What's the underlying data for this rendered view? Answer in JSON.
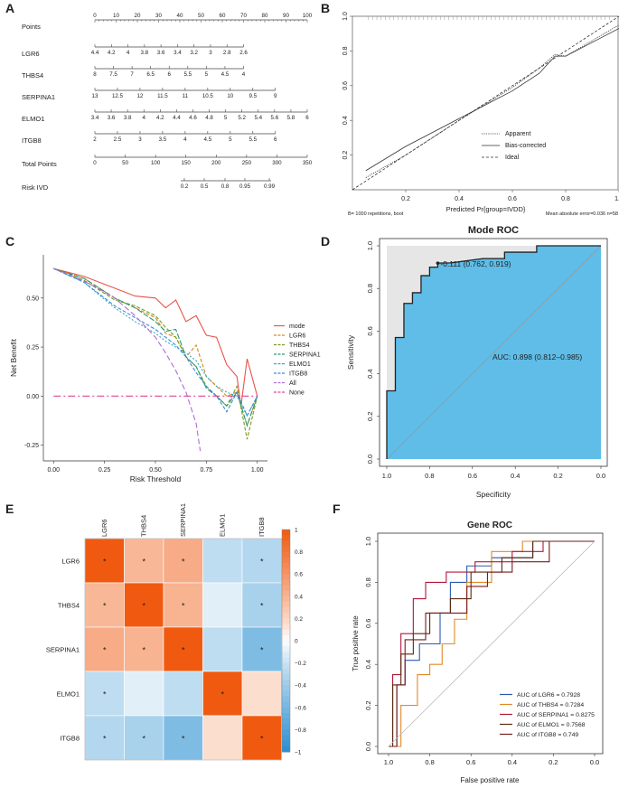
{
  "panels": {
    "A": "A",
    "B": "B",
    "C": "C",
    "D": "D",
    "E": "E",
    "F": "F"
  },
  "chart_data": [
    {
      "id": "nomogram",
      "type": "nomogram",
      "title": "",
      "rows": [
        {
          "label": "Points",
          "ticks": [
            "0",
            "10",
            "20",
            "30",
            "40",
            "50",
            "60",
            "70",
            "80",
            "90",
            "100"
          ],
          "range": [
            0,
            100
          ]
        },
        {
          "label": "LGR6",
          "ticks": [
            "4.4",
            "4.2",
            "4",
            "3.8",
            "3.6",
            "3.4",
            "3.2",
            "3",
            "2.8",
            "2.6"
          ],
          "range": [
            0,
            70
          ]
        },
        {
          "label": "THBS4",
          "ticks": [
            "8",
            "7.5",
            "7",
            "6.5",
            "6",
            "5.5",
            "5",
            "4.5",
            "4"
          ],
          "range": [
            0,
            70
          ]
        },
        {
          "label": "SERPINA1",
          "ticks": [
            "13",
            "12.5",
            "12",
            "11.5",
            "11",
            "10.5",
            "10",
            "9.5",
            "9"
          ],
          "range": [
            0,
            85
          ]
        },
        {
          "label": "ELMO1",
          "ticks": [
            "3.4",
            "3.6",
            "3.8",
            "4",
            "4.2",
            "4.4",
            "4.6",
            "4.8",
            "5",
            "5.2",
            "5.4",
            "5.6",
            "5.8",
            "6"
          ],
          "range": [
            0,
            100
          ]
        },
        {
          "label": "ITGB8",
          "ticks": [
            "2",
            "2.5",
            "3",
            "3.5",
            "4",
            "4.5",
            "5",
            "5.5",
            "6"
          ],
          "range": [
            0,
            85
          ]
        },
        {
          "label": "Total Points",
          "ticks": [
            "0",
            "50",
            "100",
            "150",
            "200",
            "250",
            "300",
            "350"
          ],
          "range": [
            0,
            350
          ]
        },
        {
          "label": "Risk IVD",
          "ticks": [
            "0.2",
            "0.5",
            "0.8",
            "0.95",
            "0.99"
          ],
          "range": [
            0,
            0
          ]
        }
      ]
    },
    {
      "id": "calibration",
      "type": "line",
      "xlabel": "Predicted Pr{group=IVDD}",
      "ylabel": "",
      "xticks": [
        "0.2",
        "0.4",
        "0.6",
        "0.8",
        "1.0"
      ],
      "yticks": [
        "0.2",
        "0.4",
        "0.6",
        "0.8",
        "1.0"
      ],
      "xlim": [
        0.0,
        1.0
      ],
      "ylim": [
        0.0,
        1.0
      ],
      "legend": [
        "Apparent",
        "Bias-corrected",
        "Ideal"
      ],
      "legend_position": "bottom-right",
      "footnote_left": "B= 1000 repetitions, boot",
      "footnote_right": "Mean absolute error=0.036 n=58",
      "series": [
        {
          "name": "Apparent",
          "x": [
            0.05,
            0.2,
            0.4,
            0.6,
            0.7,
            0.76,
            0.8,
            0.9,
            1.0
          ],
          "y": [
            0.07,
            0.2,
            0.4,
            0.59,
            0.7,
            0.78,
            0.77,
            0.86,
            0.95
          ]
        },
        {
          "name": "Bias-corrected",
          "x": [
            0.05,
            0.2,
            0.4,
            0.6,
            0.7,
            0.76,
            0.8,
            0.9,
            1.0
          ],
          "y": [
            0.11,
            0.25,
            0.41,
            0.57,
            0.67,
            0.77,
            0.77,
            0.85,
            0.93
          ]
        },
        {
          "name": "Ideal",
          "x": [
            0.0,
            1.0
          ],
          "y": [
            0.0,
            1.0
          ]
        }
      ]
    },
    {
      "id": "dca",
      "type": "line",
      "xlabel": "Risk Threshold",
      "ylabel": "Net Benefit",
      "xticks": [
        "0.00",
        "0.25",
        "0.50",
        "0.75",
        "1.00"
      ],
      "yticks": [
        "-0.25",
        "0.00",
        "0.25",
        "0.50"
      ],
      "xlim": [
        -0.05,
        1.05
      ],
      "ylim": [
        -0.33,
        0.72
      ],
      "legend_position": "right",
      "series": [
        {
          "name": "mode",
          "color": "#e8534a",
          "dash": "",
          "x": [
            0,
            0.15,
            0.3,
            0.4,
            0.5,
            0.55,
            0.6,
            0.65,
            0.7,
            0.75,
            0.8,
            0.85,
            0.9,
            0.92,
            0.95,
            1.0
          ],
          "y": [
            0.65,
            0.61,
            0.55,
            0.51,
            0.5,
            0.45,
            0.49,
            0.38,
            0.41,
            0.31,
            0.3,
            0.16,
            0.1,
            -0.05,
            0.19,
            0.0
          ]
        },
        {
          "name": "LGR6",
          "color": "#d88a1c",
          "dash": "4,2",
          "x": [
            0,
            0.15,
            0.3,
            0.4,
            0.5,
            0.55,
            0.6,
            0.65,
            0.7,
            0.75,
            0.8,
            0.85,
            0.9,
            0.95,
            1.0
          ],
          "y": [
            0.65,
            0.6,
            0.5,
            0.45,
            0.4,
            0.32,
            0.3,
            0.2,
            0.26,
            0.1,
            0.05,
            0.0,
            0.02,
            -0.15,
            0.0
          ]
        },
        {
          "name": "THBS4",
          "color": "#7a9a1e",
          "dash": "4,2",
          "x": [
            0,
            0.15,
            0.3,
            0.4,
            0.5,
            0.55,
            0.6,
            0.65,
            0.7,
            0.75,
            0.8,
            0.85,
            0.9,
            0.95,
            1.0
          ],
          "y": [
            0.65,
            0.59,
            0.49,
            0.46,
            0.41,
            0.35,
            0.3,
            0.2,
            0.15,
            0.05,
            0.0,
            -0.05,
            0.05,
            -0.22,
            0.0
          ]
        },
        {
          "name": "SERPINA1",
          "color": "#2a9a6a",
          "dash": "6,2",
          "x": [
            0,
            0.15,
            0.3,
            0.4,
            0.5,
            0.55,
            0.6,
            0.65,
            0.7,
            0.75,
            0.8,
            0.85,
            0.9,
            0.95,
            1.0
          ],
          "y": [
            0.65,
            0.6,
            0.5,
            0.45,
            0.38,
            0.33,
            0.34,
            0.2,
            0.15,
            0.04,
            0.0,
            -0.05,
            0.02,
            -0.15,
            0.0
          ]
        },
        {
          "name": "ELMO1",
          "color": "#2aa8c8",
          "dash": "2,2",
          "x": [
            0,
            0.15,
            0.3,
            0.4,
            0.5,
            0.55,
            0.6,
            0.65,
            0.7,
            0.75,
            0.8,
            0.85,
            0.9,
            0.95,
            1.0
          ],
          "y": [
            0.65,
            0.58,
            0.45,
            0.38,
            0.32,
            0.28,
            0.25,
            0.22,
            0.18,
            0.1,
            0.05,
            0.02,
            0.0,
            -0.1,
            0.0
          ]
        },
        {
          "name": "ITGB8",
          "color": "#3a8ad8",
          "dash": "4,2",
          "x": [
            0,
            0.15,
            0.3,
            0.4,
            0.5,
            0.55,
            0.6,
            0.65,
            0.7,
            0.75,
            0.8,
            0.85,
            0.9,
            0.95,
            1.0
          ],
          "y": [
            0.65,
            0.58,
            0.46,
            0.4,
            0.34,
            0.3,
            0.26,
            0.2,
            0.12,
            0.05,
            0.0,
            -0.08,
            0.02,
            -0.1,
            0.0
          ]
        },
        {
          "name": "All",
          "color": "#b36ad8",
          "dash": "6,3",
          "x": [
            0,
            0.1,
            0.2,
            0.3,
            0.4,
            0.5,
            0.55,
            0.6,
            0.65,
            0.7,
            0.72
          ],
          "y": [
            0.65,
            0.61,
            0.56,
            0.5,
            0.41,
            0.3,
            0.22,
            0.13,
            0.02,
            -0.14,
            -0.28
          ]
        },
        {
          "name": "None",
          "color": "#e0449a",
          "dash": "8,3,2,3",
          "x": [
            0,
            1.0
          ],
          "y": [
            0,
            0
          ]
        }
      ]
    },
    {
      "id": "mode-roc",
      "type": "line",
      "title": "Mode ROC",
      "xlabel": "Specificity",
      "ylabel": "Sensitivity",
      "xticks": [
        "1.0",
        "0.8",
        "0.6",
        "0.4",
        "0.2",
        "0.0"
      ],
      "yticks": [
        "0.0",
        "0.2",
        "0.4",
        "0.6",
        "0.8",
        "1.0"
      ],
      "xlim": [
        1.0,
        0.0
      ],
      "ylim": [
        0.0,
        1.0
      ],
      "auc_text": "AUC: 0.898 (0.812–0.985)",
      "threshold_text": "-0.111 (0.762, 0.919)",
      "threshold_point": [
        0.762,
        0.919
      ],
      "series": [
        {
          "name": "ROC",
          "spec": [
            1.0,
            1.0,
            0.96,
            0.96,
            0.92,
            0.92,
            0.88,
            0.88,
            0.84,
            0.84,
            0.8,
            0.8,
            0.762,
            0.762,
            0.7,
            0.55,
            0.45,
            0.45,
            0.3,
            0.3,
            0.0
          ],
          "sens": [
            0.0,
            0.32,
            0.32,
            0.57,
            0.57,
            0.73,
            0.73,
            0.78,
            0.78,
            0.86,
            0.86,
            0.9,
            0.9,
            0.919,
            0.92,
            0.94,
            0.94,
            0.97,
            0.97,
            1.0,
            1.0
          ]
        }
      ]
    },
    {
      "id": "correlation",
      "type": "heatmap",
      "labels": [
        "LGR6",
        "THBS4",
        "SERPINA1",
        "ELMO1",
        "ITGB8"
      ],
      "matrix": [
        [
          1.0,
          0.38,
          0.45,
          -0.25,
          -0.3
        ],
        [
          0.38,
          1.0,
          0.4,
          -0.1,
          -0.35
        ],
        [
          0.45,
          0.4,
          1.0,
          -0.25,
          -0.55
        ],
        [
          -0.25,
          -0.1,
          -0.25,
          1.0,
          0.15
        ],
        [
          -0.3,
          -0.35,
          -0.55,
          0.15,
          1.0
        ]
      ],
      "significant": [
        [
          true,
          true,
          true,
          false,
          true
        ],
        [
          true,
          true,
          true,
          false,
          true
        ],
        [
          true,
          true,
          true,
          false,
          true
        ],
        [
          true,
          false,
          false,
          true,
          false
        ],
        [
          true,
          true,
          true,
          false,
          true
        ]
      ],
      "star": "*",
      "colorbar_ticks": [
        "1",
        "0.8",
        "0.6",
        "0.4",
        "0.2",
        "0",
        "−0.2",
        "−0.4",
        "−0.6",
        "−0.8",
        "−1"
      ]
    },
    {
      "id": "gene-roc",
      "type": "line",
      "title": "Gene ROC",
      "xlabel": "False positive rate",
      "ylabel": "True positive rate",
      "xticks": [
        "1.0",
        "0.8",
        "0.6",
        "0.4",
        "0.2",
        "0.0"
      ],
      "yticks": [
        "0.0",
        "0.2",
        "0.4",
        "0.6",
        "0.8",
        "1.0"
      ],
      "xlim": [
        1.0,
        0.0
      ],
      "ylim": [
        0.0,
        1.0
      ],
      "legend_position": "bottom-right",
      "series": [
        {
          "name": "LGR6",
          "label": "AUC of  LGR6  = 0.7928",
          "color": "#2a5ab0",
          "x": [
            1.0,
            0.96,
            0.96,
            0.92,
            0.92,
            0.85,
            0.85,
            0.75,
            0.75,
            0.7,
            0.7,
            0.62,
            0.62,
            0.5,
            0.5,
            0.3,
            0.3,
            0.0
          ],
          "y": [
            0.0,
            0.0,
            0.3,
            0.3,
            0.42,
            0.42,
            0.5,
            0.5,
            0.65,
            0.65,
            0.8,
            0.8,
            0.88,
            0.88,
            0.92,
            0.92,
            1.0,
            1.0
          ]
        },
        {
          "name": "THBS4",
          "label": "AUC of  THBS4  = 0.7284",
          "color": "#e08a2a",
          "x": [
            1.0,
            0.94,
            0.94,
            0.86,
            0.86,
            0.8,
            0.8,
            0.74,
            0.74,
            0.68,
            0.68,
            0.62,
            0.62,
            0.5,
            0.5,
            0.35,
            0.35,
            0.0
          ],
          "y": [
            0.0,
            0.0,
            0.2,
            0.2,
            0.35,
            0.35,
            0.4,
            0.4,
            0.5,
            0.5,
            0.62,
            0.62,
            0.8,
            0.8,
            0.95,
            0.95,
            1.0,
            1.0
          ]
        },
        {
          "name": "SERPINA1",
          "label": "AUC of  SERPINA1  = 0.8275",
          "color": "#b0183a",
          "x": [
            1.0,
            0.98,
            0.98,
            0.94,
            0.94,
            0.88,
            0.88,
            0.82,
            0.82,
            0.72,
            0.72,
            0.58,
            0.58,
            0.4,
            0.4,
            0.25,
            0.25,
            0.0
          ],
          "y": [
            0.0,
            0.0,
            0.35,
            0.35,
            0.55,
            0.55,
            0.72,
            0.72,
            0.8,
            0.8,
            0.85,
            0.85,
            0.9,
            0.9,
            0.95,
            0.95,
            1.0,
            1.0
          ]
        },
        {
          "name": "ELMO1",
          "label": "AUC of  ELMO1  = 0.7568",
          "color": "#5a2a10",
          "x": [
            1.0,
            0.98,
            0.98,
            0.94,
            0.94,
            0.88,
            0.88,
            0.8,
            0.8,
            0.7,
            0.7,
            0.6,
            0.6,
            0.45,
            0.45,
            0.3,
            0.3,
            0.0
          ],
          "y": [
            0.0,
            0.0,
            0.3,
            0.3,
            0.45,
            0.45,
            0.55,
            0.55,
            0.65,
            0.65,
            0.72,
            0.72,
            0.85,
            0.85,
            0.92,
            0.92,
            1.0,
            1.0
          ]
        },
        {
          "name": "ITGB8",
          "label": "AUC of  ITGB8  = 0.749",
          "color": "#7a1a1a",
          "x": [
            1.0,
            0.96,
            0.96,
            0.92,
            0.92,
            0.82,
            0.82,
            0.72,
            0.72,
            0.62,
            0.62,
            0.52,
            0.52,
            0.4,
            0.4,
            0.22,
            0.22,
            0.0
          ],
          "y": [
            0.0,
            0.0,
            0.3,
            0.3,
            0.52,
            0.52,
            0.65,
            0.65,
            0.65,
            0.65,
            0.78,
            0.78,
            0.85,
            0.85,
            0.9,
            0.9,
            1.0,
            1.0
          ]
        },
        {
          "name": "reference",
          "label": "",
          "color": "#bbbbbb",
          "x": [
            1.0,
            0.0
          ],
          "y": [
            0.0,
            1.0
          ]
        }
      ]
    }
  ]
}
